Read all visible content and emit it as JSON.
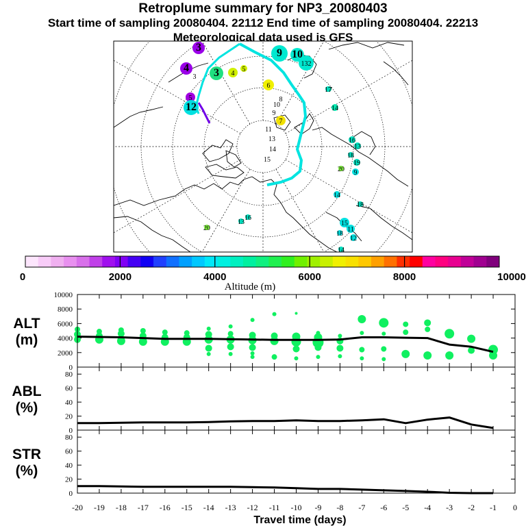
{
  "header": {
    "title": "Retroplume summary for NP3_20080403",
    "sampling": "Start time of sampling 20080404. 22112     End time of sampling 20080404. 22213",
    "met": "Meteorological data used is GFS"
  },
  "map": {
    "labels": [
      {
        "id": "m1",
        "text": "9",
        "color": "#00e8d0",
        "big": true
      },
      {
        "id": "m2",
        "text": "10",
        "color": "#00e8d0",
        "big": true
      },
      {
        "id": "m3",
        "text": "132",
        "color": "#00e8d0",
        "big": false
      },
      {
        "id": "m4",
        "text": "3",
        "color": "#20e080",
        "big": true
      },
      {
        "id": "m5",
        "text": "4",
        "color": "#d0f000",
        "big": false
      },
      {
        "id": "m6",
        "text": "5",
        "color": "#d0f000",
        "big": false
      },
      {
        "id": "m7",
        "text": "4",
        "color": "#9a00e8",
        "big": true
      },
      {
        "id": "m8",
        "text": "3",
        "color": "#ffffff",
        "big": false
      },
      {
        "id": "m9",
        "text": "3",
        "color": "#9a00e8",
        "big": true
      },
      {
        "id": "m10",
        "text": "5",
        "color": "#a000e0",
        "big": false
      },
      {
        "id": "m11",
        "text": "12",
        "color": "#00e0e0",
        "big": true
      },
      {
        "id": "m12",
        "text": "6",
        "color": "#f0f000",
        "big": false
      },
      {
        "id": "m13",
        "text": "7",
        "color": "#f0e000",
        "big": false
      },
      {
        "id": "m14",
        "text": "8",
        "color": "#ffffff",
        "big": false
      },
      {
        "id": "m15",
        "text": "9",
        "color": "#ffffff",
        "big": false
      },
      {
        "id": "m16",
        "text": "10",
        "color": "#ffffff",
        "big": false
      },
      {
        "id": "m17",
        "text": "11",
        "color": "#ffffff",
        "big": false
      },
      {
        "id": "m18",
        "text": "13",
        "color": "#ffffff",
        "big": false
      },
      {
        "id": "m19",
        "text": "14",
        "color": "#ffffff",
        "big": false
      },
      {
        "id": "m20",
        "text": "15",
        "color": "#ffffff",
        "big": false
      },
      {
        "id": "m21",
        "text": "14",
        "color": "#00e8b0",
        "big": false
      },
      {
        "id": "m22",
        "text": "17",
        "color": "#00e8b0",
        "big": false
      },
      {
        "id": "m23",
        "text": "16",
        "color": "#00e0c0",
        "big": false
      },
      {
        "id": "m24",
        "text": "13",
        "color": "#00e0c0",
        "big": false
      },
      {
        "id": "m25",
        "text": "18",
        "color": "#00e0c0",
        "big": false
      },
      {
        "id": "m26",
        "text": "19",
        "color": "#00e0c0",
        "big": false
      },
      {
        "id": "m27",
        "text": "20",
        "color": "#80f040",
        "big": false
      },
      {
        "id": "m28",
        "text": "9",
        "color": "#00e0e0",
        "big": false
      },
      {
        "id": "m29",
        "text": "14",
        "color": "#00e0e0",
        "big": false
      },
      {
        "id": "m30",
        "text": "18",
        "color": "#00e0c0",
        "big": false
      },
      {
        "id": "m31",
        "text": "15",
        "color": "#00e0e0",
        "big": false
      },
      {
        "id": "m32",
        "text": "11",
        "color": "#00e0e0",
        "big": false
      },
      {
        "id": "m33",
        "text": "12",
        "color": "#00e0e0",
        "big": false
      },
      {
        "id": "m34",
        "text": "18",
        "color": "#00e0e0",
        "big": false
      },
      {
        "id": "m35",
        "text": "17",
        "color": "#00e0c0",
        "big": false
      },
      {
        "id": "m36",
        "text": "16",
        "color": "#00e0c0",
        "big": false
      },
      {
        "id": "m37",
        "text": "20",
        "color": "#80f040",
        "big": false
      },
      {
        "id": "m38",
        "text": "13",
        "color": "#00e0c0",
        "big": false
      },
      {
        "id": "m39",
        "text": "14",
        "color": "#00e0c0",
        "big": false
      }
    ]
  },
  "colorbar": {
    "ticks": [
      "0",
      "2000",
      "4000",
      "6000",
      "8000",
      "10000"
    ],
    "label": "Altitude (m)",
    "colors": [
      "#fde6fd",
      "#f8ccf8",
      "#f0b0f0",
      "#e890ef",
      "#d870ea",
      "#c040e8",
      "#a010ee",
      "#8000f4",
      "#4400f4",
      "#1000f4",
      "#2040ff",
      "#1070ff",
      "#00a0ff",
      "#00c8ff",
      "#00e8f8",
      "#00f0e0",
      "#00f0c0",
      "#00f0a0",
      "#10f080",
      "#20f050",
      "#30f020",
      "#70f000",
      "#a0f000",
      "#c8f000",
      "#f0f000",
      "#f8e000",
      "#ffc800",
      "#ffa000",
      "#ff7000",
      "#ff3000",
      "#ff0000",
      "#ff00a0",
      "#ff0080",
      "#e80090",
      "#c00098",
      "#a00090",
      "#80007c"
    ]
  },
  "chart_data": [
    {
      "type": "line",
      "panel": "ALT",
      "ylabel": "ALT\n(m)",
      "ylabel_lines": [
        "ALT",
        "(m)"
      ],
      "ylim": [
        0,
        10000
      ],
      "yticks": [
        "0",
        "2000",
        "4000",
        "6000",
        "8000",
        "10000"
      ],
      "xlim": [
        -20,
        0
      ],
      "line": {
        "x": [
          -20,
          -19,
          -18,
          -17,
          -16,
          -15,
          -14,
          -13,
          -12,
          -11,
          -10,
          -9,
          -8,
          -7,
          -6,
          -5,
          -4,
          -3,
          -2,
          -1
        ],
        "y": [
          4200,
          4150,
          4100,
          4000,
          3900,
          3900,
          3900,
          3850,
          3800,
          3750,
          3750,
          3750,
          3800,
          4100,
          4100,
          4050,
          4000,
          3100,
          2800,
          2100
        ]
      },
      "clusters": [
        {
          "x": -20,
          "y": [
            5200,
            4500,
            3800
          ],
          "s": [
            4,
            5,
            5
          ]
        },
        {
          "x": -19,
          "y": [
            4900,
            4300,
            3800
          ],
          "s": [
            4,
            5,
            6
          ]
        },
        {
          "x": -18,
          "y": [
            5100,
            4600,
            3900,
            3600
          ],
          "s": [
            4,
            5,
            5,
            6
          ]
        },
        {
          "x": -17,
          "y": [
            5000,
            4300,
            3800,
            3500
          ],
          "s": [
            4,
            5,
            5,
            6
          ]
        },
        {
          "x": -16,
          "y": [
            4800,
            4100,
            3500
          ],
          "s": [
            4,
            5,
            6
          ]
        },
        {
          "x": -15,
          "y": [
            4700,
            4100,
            3500
          ],
          "s": [
            4,
            5,
            6
          ]
        },
        {
          "x": -14,
          "y": [
            5300,
            4500,
            3800,
            2600,
            1800
          ],
          "s": [
            3,
            5,
            6,
            5,
            3
          ]
        },
        {
          "x": -13,
          "y": [
            5600,
            4600,
            3800,
            2800,
            1800
          ],
          "s": [
            3,
            4,
            6,
            5,
            3
          ]
        },
        {
          "x": -12,
          "y": [
            6500,
            4400,
            3700,
            2700,
            1900,
            1400
          ],
          "s": [
            3,
            5,
            6,
            5,
            3,
            3
          ]
        },
        {
          "x": -11,
          "y": [
            7300,
            4300,
            3600,
            1400
          ],
          "s": [
            3,
            5,
            6,
            4
          ]
        },
        {
          "x": -10,
          "y": [
            7400,
            4200,
            3500,
            2500,
            1200
          ],
          "s": [
            2,
            6,
            7,
            5,
            3
          ]
        },
        {
          "x": -9,
          "y": [
            4700,
            4100,
            3400,
            2700,
            1400
          ],
          "s": [
            3,
            6,
            8,
            5,
            3
          ]
        },
        {
          "x": -8,
          "y": [
            4300,
            3600,
            2600,
            1500
          ],
          "s": [
            3,
            5,
            5,
            3
          ]
        },
        {
          "x": -7,
          "y": [
            6600,
            4700,
            2400,
            1200
          ],
          "s": [
            6,
            3,
            4,
            3
          ]
        },
        {
          "x": -6,
          "y": [
            6100,
            4600,
            2500,
            1100
          ],
          "s": [
            7,
            3,
            4,
            3
          ]
        },
        {
          "x": -5,
          "y": [
            5900,
            4800,
            1800
          ],
          "s": [
            4,
            4,
            6
          ]
        },
        {
          "x": -4,
          "y": [
            6100,
            5200,
            1600
          ],
          "s": [
            5,
            4,
            6
          ]
        },
        {
          "x": -3,
          "y": [
            4600,
            1600
          ],
          "s": [
            7,
            6
          ]
        },
        {
          "x": -2,
          "y": [
            3900,
            2300
          ],
          "s": [
            6,
            5
          ]
        },
        {
          "x": -1,
          "y": [
            2400,
            1600
          ],
          "s": [
            7,
            6
          ]
        }
      ]
    },
    {
      "type": "line",
      "panel": "ABL",
      "ylabel": "ABL\n(%)",
      "ylabel_lines": [
        "ABL",
        "(%)"
      ],
      "ylim": [
        0,
        90
      ],
      "yticks": [
        "0",
        "20",
        "40",
        "60",
        "80"
      ],
      "xlim": [
        -20,
        0
      ],
      "x": [
        -20,
        -19,
        -18,
        -17,
        -16,
        -15,
        -14,
        -13,
        -12,
        -11,
        -10,
        -9,
        -8,
        -7,
        -6,
        -5,
        -4,
        -3,
        -2,
        -1
      ],
      "y": [
        10,
        10,
        10.5,
        11,
        11,
        11,
        11.5,
        12.5,
        13,
        13,
        14,
        13,
        13,
        14,
        15.5,
        10,
        15,
        18,
        8,
        3
      ]
    },
    {
      "type": "line",
      "panel": "STR",
      "ylabel": "STR\n(%)",
      "ylabel_lines": [
        "STR",
        "(%)"
      ],
      "ylim": [
        0,
        90
      ],
      "yticks": [
        "0",
        "20",
        "40",
        "60",
        "80"
      ],
      "xlim": [
        -20,
        0
      ],
      "xticks": [
        "-20",
        "-19",
        "-18",
        "-17",
        "-16",
        "-15",
        "-14",
        "-13",
        "-12",
        "-11",
        "-10",
        "-9",
        "-8",
        "-7",
        "-6",
        "-5",
        "-4",
        "-3",
        "-2",
        "-1",
        "0"
      ],
      "xlabel": "Travel time (days)",
      "x": [
        -20,
        -19,
        -18,
        -17,
        -16,
        -15,
        -14,
        -13,
        -12,
        -11,
        -10,
        -9,
        -8,
        -7,
        -6,
        -5,
        -4,
        -3,
        -2,
        -1
      ],
      "y": [
        10,
        10,
        9.5,
        9,
        9,
        9,
        9,
        9,
        8.5,
        8,
        7,
        6,
        6,
        5,
        4,
        3,
        2,
        0.5,
        0,
        0
      ]
    }
  ]
}
